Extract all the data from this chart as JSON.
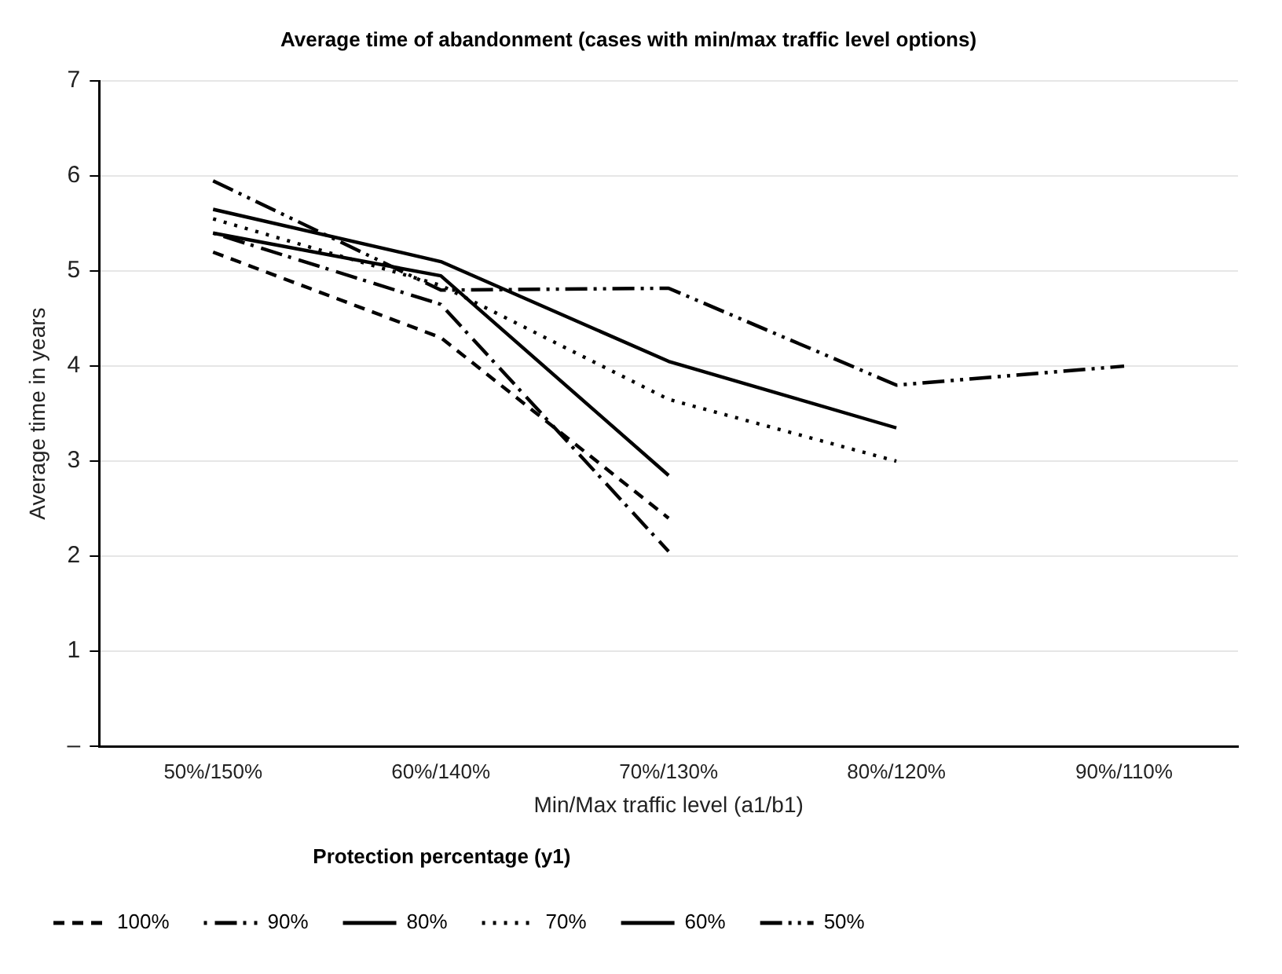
{
  "chart_data": {
    "type": "line",
    "title": "Average time of abandonment (cases with min/max traffic level options)",
    "xlabel": "Min/Max traffic level (a1/b1)",
    "ylabel": "Average time in years",
    "legend_title": "Protection percentage (y1)",
    "categories": [
      "50%/150%",
      "60%/140%",
      "70%/130%",
      "80%/120%",
      "90%/110%"
    ],
    "series": [
      {
        "name": "100%",
        "color": "#000000",
        "line_style": "dashed",
        "values": [
          5.2,
          4.3,
          2.4,
          null,
          null
        ]
      },
      {
        "name": "90%",
        "color": "#000000",
        "line_style": "dashed",
        "values": [
          5.4,
          4.65,
          2.05,
          null,
          null
        ]
      },
      {
        "name": "80%",
        "color": "#000000",
        "line_style": "solid",
        "values": [
          5.4,
          4.95,
          2.85,
          null,
          null
        ]
      },
      {
        "name": "70%",
        "color": "#000000",
        "line_style": "dotted",
        "values": [
          5.55,
          4.85,
          3.65,
          3.0,
          null
        ]
      },
      {
        "name": "60%",
        "color": "#000000",
        "line_style": "solid",
        "values": [
          5.65,
          5.1,
          4.05,
          3.35,
          null
        ]
      },
      {
        "name": "50%",
        "color": "#000000",
        "line_style": "dashed",
        "values": [
          5.95,
          4.8,
          4.82,
          3.8,
          4.0
        ]
      }
    ],
    "ylim": [
      0,
      7
    ],
    "yticks": [
      {
        "value": 0,
        "label": "–"
      },
      1,
      2,
      3,
      4,
      5,
      6,
      7
    ],
    "grid": "y",
    "legend": "bottom",
    "marker": "none"
  }
}
